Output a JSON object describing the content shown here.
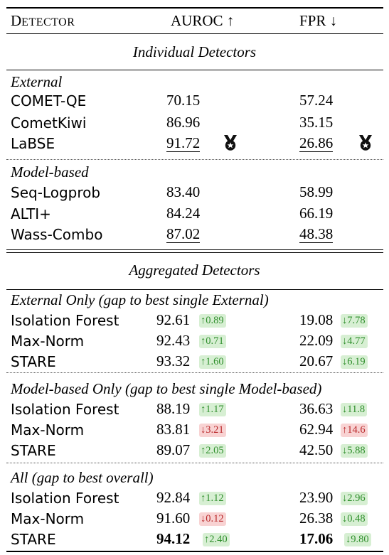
{
  "header": {
    "detector_first": "D",
    "detector_rest": "ETECTOR",
    "auroc": "AUROC ↑",
    "fpr": "FPR ↓"
  },
  "sections": {
    "individual": "Individual Detectors",
    "aggregated": "Aggregated Detectors"
  },
  "groups": {
    "external": "External",
    "model_based": "Model-based",
    "external_only": "External Only (gap to best single External)",
    "model_only": "Model-based Only (gap to best single Model-based)",
    "all": "All (gap to best overall)"
  },
  "individual_external": [
    {
      "name": "COMET-QE",
      "auroc": "70.15",
      "fpr": "57.24"
    },
    {
      "name": "CometKiwi",
      "auroc": "86.96",
      "fpr": "35.15"
    },
    {
      "name": "LaBSE",
      "auroc": "91.72",
      "fpr": "26.86"
    }
  ],
  "individual_model": [
    {
      "name": "Seq-Logprob",
      "auroc": "83.40",
      "fpr": "58.99"
    },
    {
      "name": "ALTI+",
      "auroc": "84.24",
      "fpr": "66.19"
    },
    {
      "name": "Wass-Combo",
      "auroc": "87.02",
      "fpr": "48.38"
    }
  ],
  "agg_external": [
    {
      "name": "Isolation Forest",
      "auroc": "92.61",
      "auroc_gap": "↑0.89",
      "fpr": "19.08",
      "fpr_gap": "↓7.78"
    },
    {
      "name": "Max-Norm",
      "auroc": "92.43",
      "auroc_gap": "↑0.71",
      "fpr": "22.09",
      "fpr_gap": "↓4.77"
    },
    {
      "name": "STARE",
      "auroc": "93.32",
      "auroc_gap": "↑1.60",
      "fpr": "20.67",
      "fpr_gap": "↓6.19"
    }
  ],
  "agg_model": [
    {
      "name": "Isolation Forest",
      "auroc": "88.19",
      "auroc_gap": "↑1.17",
      "fpr": "36.63",
      "fpr_gap": "↓11.8"
    },
    {
      "name": "Max-Norm",
      "auroc": "83.81",
      "auroc_gap": "↓3.21",
      "fpr": "62.94",
      "fpr_gap": "↑14.6"
    },
    {
      "name": "STARE",
      "auroc": "89.07",
      "auroc_gap": "↑2.05",
      "fpr": "42.50",
      "fpr_gap": "↓5.88"
    }
  ],
  "agg_all": [
    {
      "name": "Isolation Forest",
      "auroc": "92.84",
      "auroc_gap": "↑1.12",
      "fpr": "23.90",
      "fpr_gap": "↓2.96"
    },
    {
      "name": "Max-Norm",
      "auroc": "91.60",
      "auroc_gap": "↓0.12",
      "fpr": "26.38",
      "fpr_gap": "↓0.48"
    },
    {
      "name": "STARE",
      "auroc": "94.12",
      "auroc_gap": "↑2.40",
      "fpr": "17.06",
      "fpr_gap": "↓9.80"
    }
  ],
  "colors": {
    "improve_bg": "#d7efd3",
    "improve_text": "#2f8f2c",
    "worsen_bg": "#f8d3d3",
    "worsen_text": "#b9282a"
  },
  "icons": {
    "best_marker": "medal-icon"
  }
}
